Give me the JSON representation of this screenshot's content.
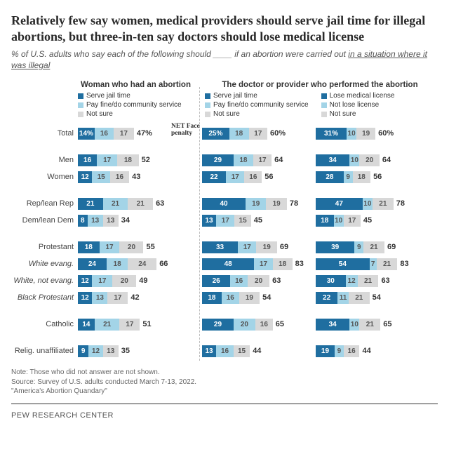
{
  "title": "Relatively few say women, medical providers should serve jail time for illegal abortions, but three-in-ten say doctors should lose medical license",
  "subtitle_lead": "% of U.S. adults who say each of the following should ____ if an abortion were carried out ",
  "subtitle_underlined": "in a situation where it was illegal",
  "header1": "Woman who had an abortion",
  "header2": "The doctor or provider who performed the abortion",
  "net_header": "NET Face penalty",
  "colors": {
    "dark": "#1f6ea0",
    "light": "#a3d4e7",
    "grey": "#d8d8d8",
    "mid": "#3e8fbf"
  },
  "scale": {
    "col1": 1.7,
    "col2": 1.55,
    "col3": 1.42
  },
  "legend1": [
    {
      "swatch": "dark",
      "label": "Serve jail time"
    },
    {
      "swatch": "light",
      "label": "Pay fine/do community service"
    },
    {
      "swatch": "grey",
      "label": "Not sure"
    }
  ],
  "legend2a": [
    {
      "swatch": "dark",
      "label": "Serve jail time"
    },
    {
      "swatch": "light",
      "label": "Pay fine/do community service"
    },
    {
      "swatch": "grey",
      "label": "Not sure"
    }
  ],
  "legend2b": [
    {
      "swatch": "dark",
      "label": "Lose medical license"
    },
    {
      "swatch": "light",
      "label": "Not lose license"
    },
    {
      "swatch": "grey",
      "label": "Not sure"
    }
  ],
  "rows": [
    {
      "label": "Total",
      "italic": false,
      "c1": {
        "s": [
          14,
          16,
          17
        ],
        "net": "47%",
        "firstPct": "14%"
      },
      "c2": {
        "s": [
          25,
          18,
          17
        ],
        "net": "60%",
        "firstPct": "25%"
      },
      "c3": {
        "s": [
          31,
          10,
          19
        ],
        "net": "60%",
        "firstPct": "31%"
      }
    },
    {
      "spacer": true
    },
    {
      "label": "Men",
      "italic": false,
      "c1": {
        "s": [
          16,
          17,
          18
        ],
        "net": "52"
      },
      "c2": {
        "s": [
          29,
          18,
          17
        ],
        "net": "64"
      },
      "c3": {
        "s": [
          34,
          10,
          20
        ],
        "net": "64"
      }
    },
    {
      "label": "Women",
      "italic": false,
      "c1": {
        "s": [
          12,
          15,
          16
        ],
        "net": "43"
      },
      "c2": {
        "s": [
          22,
          17,
          16
        ],
        "net": "56"
      },
      "c3": {
        "s": [
          28,
          9,
          18
        ],
        "net": "56"
      }
    },
    {
      "spacer": true
    },
    {
      "label": "Rep/lean Rep",
      "italic": false,
      "c1": {
        "s": [
          21,
          21,
          21
        ],
        "net": "63"
      },
      "c2": {
        "s": [
          40,
          19,
          19
        ],
        "net": "78"
      },
      "c3": {
        "s": [
          47,
          10,
          21
        ],
        "net": "78"
      }
    },
    {
      "label": "Dem/lean Dem",
      "italic": false,
      "c1": {
        "s": [
          8,
          13,
          13
        ],
        "net": "34"
      },
      "c2": {
        "s": [
          13,
          17,
          15
        ],
        "net": "45"
      },
      "c3": {
        "s": [
          18,
          10,
          17
        ],
        "net": "45"
      }
    },
    {
      "spacer": true
    },
    {
      "label": "Protestant",
      "italic": false,
      "c1": {
        "s": [
          18,
          17,
          20
        ],
        "net": "55"
      },
      "c2": {
        "s": [
          33,
          17,
          19
        ],
        "net": "69"
      },
      "c3": {
        "s": [
          39,
          9,
          21
        ],
        "net": "69"
      }
    },
    {
      "label": "White evang.",
      "italic": true,
      "c1": {
        "s": [
          24,
          18,
          24
        ],
        "net": "66"
      },
      "c2": {
        "s": [
          48,
          17,
          18
        ],
        "net": "83"
      },
      "c3": {
        "s": [
          54,
          7,
          21
        ],
        "net": "83"
      }
    },
    {
      "label": "White, not evang.",
      "italic": true,
      "c1": {
        "s": [
          12,
          17,
          20
        ],
        "net": "49"
      },
      "c2": {
        "s": [
          26,
          16,
          20
        ],
        "net": "63"
      },
      "c3": {
        "s": [
          30,
          12,
          21
        ],
        "net": "63"
      }
    },
    {
      "label": "Black Protestant",
      "italic": true,
      "c1": {
        "s": [
          12,
          13,
          17
        ],
        "net": "42"
      },
      "c2": {
        "s": [
          18,
          16,
          19
        ],
        "net": "54"
      },
      "c3": {
        "s": [
          22,
          11,
          21
        ],
        "net": "54"
      }
    },
    {
      "spacer": true
    },
    {
      "label": "Catholic",
      "italic": false,
      "c1": {
        "s": [
          14,
          21,
          17
        ],
        "net": "51"
      },
      "c2": {
        "s": [
          29,
          20,
          16
        ],
        "net": "65"
      },
      "c3": {
        "s": [
          34,
          10,
          21
        ],
        "net": "65"
      }
    },
    {
      "spacer": true
    },
    {
      "label": "Relig. unaffiliated",
      "italic": false,
      "c1": {
        "s": [
          9,
          12,
          13
        ],
        "net": "35"
      },
      "c2": {
        "s": [
          13,
          16,
          15
        ],
        "net": "44"
      },
      "c3": {
        "s": [
          19,
          9,
          16
        ],
        "net": "44"
      }
    }
  ],
  "note1": "Note: Those who did not answer are not shown.",
  "note2": "Source: Survey of U.S. adults conducted March 7-13, 2022.",
  "note3": "\"America's Abortion Quandary\"",
  "footer": "PEW RESEARCH CENTER"
}
